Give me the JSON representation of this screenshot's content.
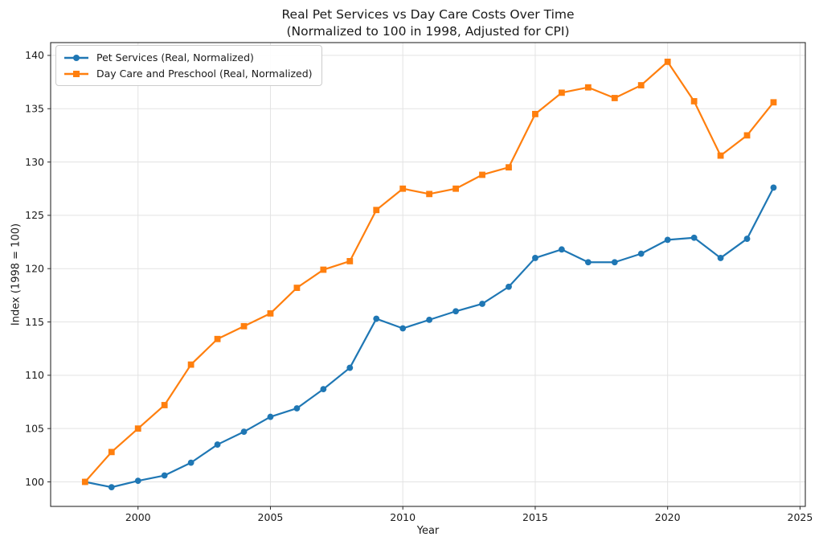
{
  "figure": {
    "background": "#ffffff"
  },
  "chart_data": {
    "type": "line",
    "title": "Real Pet Services vs Day Care Costs Over Time",
    "subtitle": "(Normalized to 100 in 1998, Adjusted for CPI)",
    "xlabel": "Year",
    "ylabel": "Index (1998 = 100)",
    "x": [
      1998,
      1999,
      2000,
      2001,
      2002,
      2003,
      2004,
      2005,
      2006,
      2007,
      2008,
      2009,
      2010,
      2011,
      2012,
      2013,
      2014,
      2015,
      2016,
      2017,
      2018,
      2019,
      2020,
      2021,
      2022,
      2023,
      2024
    ],
    "series": [
      {
        "name": "Pet Services (Real, Normalized)",
        "color": "#1f77b4",
        "marker": "circle",
        "values": [
          100.0,
          99.5,
          100.1,
          100.6,
          101.8,
          103.5,
          104.7,
          106.1,
          106.9,
          108.7,
          110.7,
          115.3,
          114.4,
          115.2,
          116.0,
          116.7,
          118.3,
          121.0,
          121.8,
          120.6,
          120.6,
          121.4,
          122.7,
          122.9,
          121.0,
          122.8,
          127.6
        ]
      },
      {
        "name": "Day Care and Preschool (Real, Normalized)",
        "color": "#ff7f0e",
        "marker": "square",
        "values": [
          100.0,
          102.8,
          105.0,
          107.2,
          111.0,
          113.4,
          114.6,
          115.8,
          118.2,
          119.9,
          120.7,
          125.5,
          127.5,
          127.0,
          127.5,
          128.8,
          129.5,
          134.5,
          136.5,
          137.0,
          136.0,
          137.2,
          139.4,
          135.7,
          130.6,
          132.5,
          135.6
        ]
      }
    ],
    "xlim": [
      1996.7,
      2025.2
    ],
    "ylim": [
      97.7,
      141.2
    ],
    "xticks": [
      2000,
      2005,
      2010,
      2015,
      2020,
      2025
    ],
    "yticks": [
      100,
      105,
      110,
      115,
      120,
      125,
      130,
      135,
      140
    ],
    "grid": true,
    "legend_position": "upper left",
    "grid_color": "#e3e3e3",
    "spine_color": "#2b2b2b",
    "tick_color": "#2b2b2b",
    "text_color": "#1a1a1a"
  }
}
